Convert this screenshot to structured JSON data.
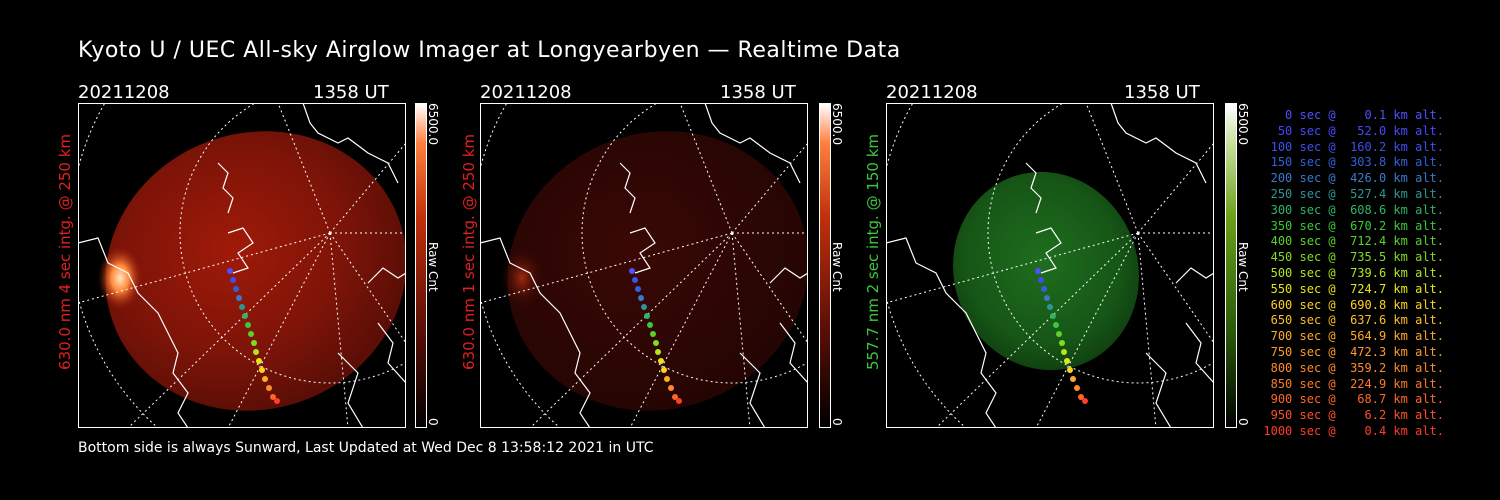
{
  "title": "Kyoto U / UEC All-sky Airglow Imager at Longyearbyen — Realtime Data",
  "footer": "Bottom side is always Sunward, Last Updated at Wed Dec  8 13:58:12 2021 in UTC",
  "colors": {
    "red": "#e02020",
    "green": "#3cc83c",
    "white": "#ffffff"
  },
  "panels": [
    {
      "date": "20211208",
      "time": "1358 UT",
      "ylabel": "630.0 nm 4 sec intg. @ 250 km",
      "ylabel_color": "#e02020",
      "colorbar": {
        "max": "6500.0",
        "min": "0",
        "unit": "Raw Cnt",
        "scheme": "red"
      }
    },
    {
      "date": "20211208",
      "time": "1358 UT",
      "ylabel": "630.0 nm 1 sec intg. @ 250 km",
      "ylabel_color": "#e02020",
      "colorbar": {
        "max": "6500.0",
        "min": "0",
        "unit": "Raw Cnt",
        "scheme": "red"
      }
    },
    {
      "date": "20211208",
      "time": "1358 UT",
      "ylabel": "557.7 nm 2 sec intg. @ 150 km",
      "ylabel_color": "#3cc83c",
      "colorbar": {
        "max": "6500.0",
        "min": "0",
        "unit": "Raw Cnt",
        "scheme": "green"
      }
    }
  ],
  "trajectory_legend": [
    {
      "text": "   0 sec @    0.1 km alt.",
      "color": "#5050ff"
    },
    {
      "text": "  50 sec @   52.0 km alt.",
      "color": "#4848ff"
    },
    {
      "text": " 100 sec @  160.2 km alt.",
      "color": "#3c50f0"
    },
    {
      "text": " 150 sec @  303.8 km alt.",
      "color": "#3060e0"
    },
    {
      "text": " 200 sec @  426.0 km alt.",
      "color": "#3a7acc"
    },
    {
      "text": " 250 sec @  527.4 km alt.",
      "color": "#2f9696"
    },
    {
      "text": " 300 sec @  608.6 km alt.",
      "color": "#2fb46a"
    },
    {
      "text": " 350 sec @  670.2 km alt.",
      "color": "#3cc83c"
    },
    {
      "text": " 400 sec @  712.4 km alt.",
      "color": "#5ad22a"
    },
    {
      "text": " 450 sec @  735.5 km alt.",
      "color": "#82dc1e"
    },
    {
      "text": " 500 sec @  739.6 km alt.",
      "color": "#b4e61e"
    },
    {
      "text": " 550 sec @  724.7 km alt.",
      "color": "#e6e614"
    },
    {
      "text": " 600 sec @  690.8 km alt.",
      "color": "#ffd21e"
    },
    {
      "text": " 650 sec @  637.6 km alt.",
      "color": "#ffbe28"
    },
    {
      "text": " 700 sec @  564.9 km alt.",
      "color": "#ffaa2a"
    },
    {
      "text": " 750 sec @  472.3 km alt.",
      "color": "#ff9a2a"
    },
    {
      "text": " 800 sec @  359.2 km alt.",
      "color": "#ff8a2a"
    },
    {
      "text": " 850 sec @  224.9 km alt.",
      "color": "#ff7a28"
    },
    {
      "text": " 900 sec @   68.7 km alt.",
      "color": "#ff6628"
    },
    {
      "text": " 950 sec @    6.2 km alt.",
      "color": "#ff5028"
    },
    {
      "text": "1000 sec @    0.4 km alt.",
      "color": "#ff3c28"
    }
  ]
}
